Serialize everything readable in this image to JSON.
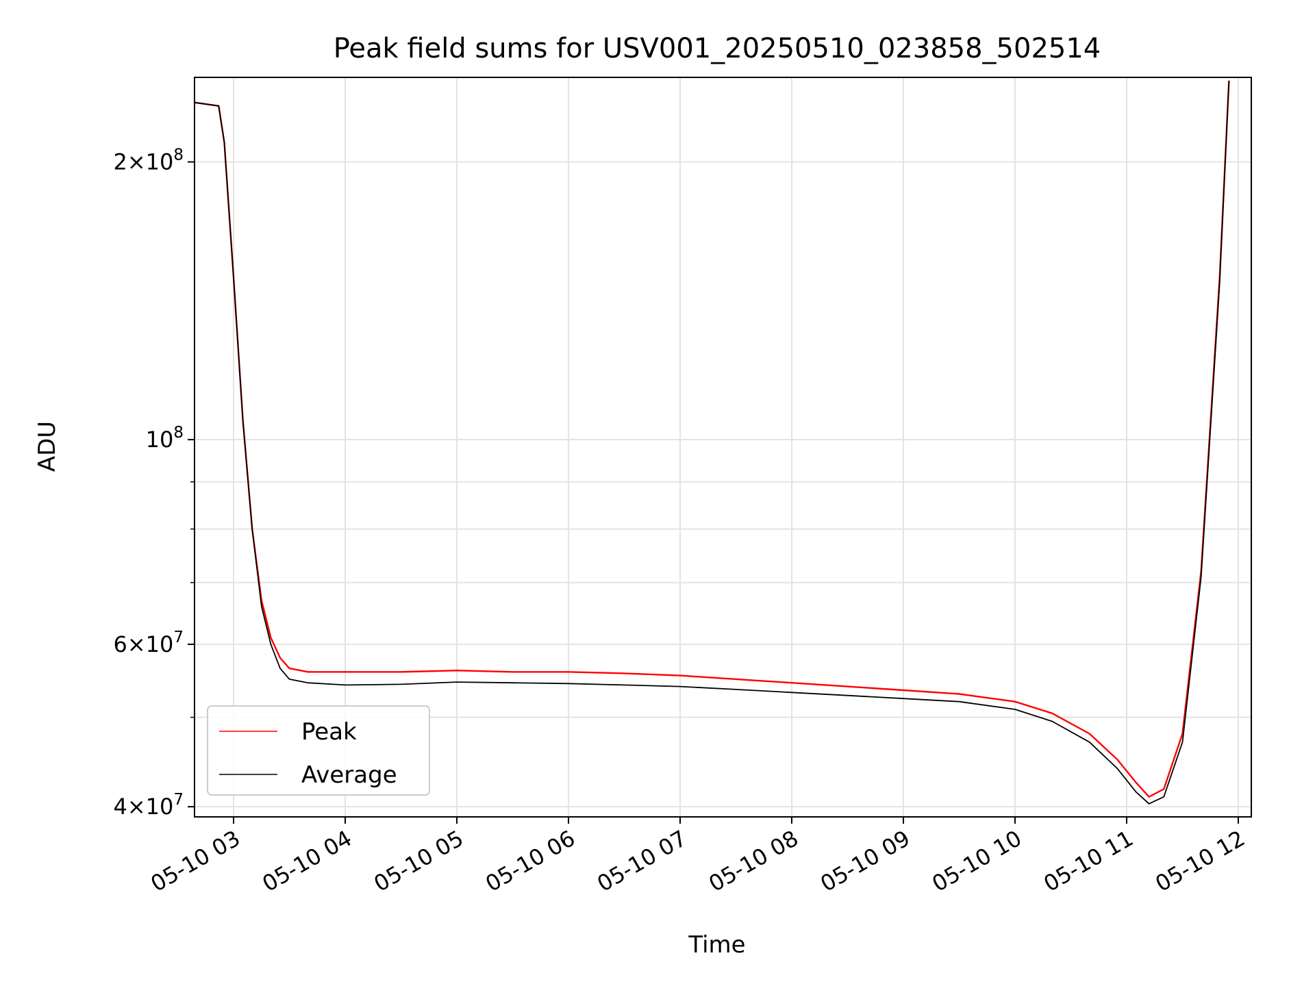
{
  "chart_data": {
    "type": "line",
    "title": "Peak field sums for USV001_20250510_023858_502514",
    "xlabel": "Time",
    "ylabel": "ADU",
    "yscale": "log",
    "ylim": [
      39000000,
      247000000
    ],
    "xlim": [
      "2025-05-10 02:39",
      "2025-05-10 12:07"
    ],
    "grid": true,
    "legend_position": "lower-left",
    "x_ticks": [
      "2025-05-10 03:00",
      "2025-05-10 04:00",
      "2025-05-10 05:00",
      "2025-05-10 06:00",
      "2025-05-10 07:00",
      "2025-05-10 08:00",
      "2025-05-10 09:00",
      "2025-05-10 10:00",
      "2025-05-10 11:00",
      "2025-05-10 12:00"
    ],
    "x_tick_labels": [
      "05-10 03",
      "05-10 04",
      "05-10 05",
      "05-10 06",
      "05-10 07",
      "05-10 08",
      "05-10 09",
      "05-10 10",
      "05-10 11",
      "05-10 12"
    ],
    "y_ticks": [
      {
        "value": 40000000,
        "mantissa": "4",
        "exponent": "7"
      },
      {
        "value": 60000000,
        "mantissa": "6",
        "exponent": "7"
      },
      {
        "value": 100000000,
        "mantissa": "",
        "exponent": "8"
      },
      {
        "value": 200000000,
        "mantissa": "2",
        "exponent": "8"
      }
    ],
    "y_minor_ticks": [
      50000000,
      70000000,
      80000000,
      90000000
    ],
    "series": [
      {
        "name": "Peak",
        "color": "#ff0000",
        "x": [
          "2025-05-10 02:39",
          "2025-05-10 02:52",
          "2025-05-10 02:55",
          "2025-05-10 03:00",
          "2025-05-10 03:05",
          "2025-05-10 03:10",
          "2025-05-10 03:15",
          "2025-05-10 03:20",
          "2025-05-10 03:25",
          "2025-05-10 03:30",
          "2025-05-10 03:40",
          "2025-05-10 04:00",
          "2025-05-10 04:30",
          "2025-05-10 05:00",
          "2025-05-10 05:30",
          "2025-05-10 06:00",
          "2025-05-10 06:30",
          "2025-05-10 07:00",
          "2025-05-10 07:30",
          "2025-05-10 08:00",
          "2025-05-10 08:30",
          "2025-05-10 09:00",
          "2025-05-10 09:30",
          "2025-05-10 10:00",
          "2025-05-10 10:20",
          "2025-05-10 10:40",
          "2025-05-10 10:55",
          "2025-05-10 11:05",
          "2025-05-10 11:12",
          "2025-05-10 11:20",
          "2025-05-10 11:30",
          "2025-05-10 11:40",
          "2025-05-10 11:50",
          "2025-05-10 11:55"
        ],
        "y": [
          232000000,
          230000000,
          210000000,
          150000000,
          105000000,
          80000000,
          67000000,
          61000000,
          58000000,
          56500000,
          56000000,
          56000000,
          56000000,
          56200000,
          56000000,
          56000000,
          55800000,
          55500000,
          55000000,
          54500000,
          54000000,
          53500000,
          53000000,
          52000000,
          50500000,
          48000000,
          45000000,
          42500000,
          41000000,
          41800000,
          48000000,
          72000000,
          150000000,
          245000000
        ]
      },
      {
        "name": "Average",
        "color": "#000000",
        "x": [
          "2025-05-10 02:39",
          "2025-05-10 02:52",
          "2025-05-10 02:55",
          "2025-05-10 03:00",
          "2025-05-10 03:05",
          "2025-05-10 03:10",
          "2025-05-10 03:15",
          "2025-05-10 03:20",
          "2025-05-10 03:25",
          "2025-05-10 03:30",
          "2025-05-10 03:40",
          "2025-05-10 04:00",
          "2025-05-10 04:30",
          "2025-05-10 05:00",
          "2025-05-10 05:30",
          "2025-05-10 06:00",
          "2025-05-10 06:30",
          "2025-05-10 07:00",
          "2025-05-10 07:30",
          "2025-05-10 08:00",
          "2025-05-10 08:30",
          "2025-05-10 09:00",
          "2025-05-10 09:30",
          "2025-05-10 10:00",
          "2025-05-10 10:20",
          "2025-05-10 10:40",
          "2025-05-10 10:55",
          "2025-05-10 11:05",
          "2025-05-10 11:12",
          "2025-05-10 11:20",
          "2025-05-10 11:30",
          "2025-05-10 11:40",
          "2025-05-10 11:50",
          "2025-05-10 11:55"
        ],
        "y": [
          232000000,
          230000000,
          210000000,
          150000000,
          105000000,
          80000000,
          66000000,
          60000000,
          56500000,
          55000000,
          54500000,
          54200000,
          54300000,
          54600000,
          54500000,
          54400000,
          54200000,
          54000000,
          53600000,
          53200000,
          52800000,
          52400000,
          52000000,
          51000000,
          49500000,
          47000000,
          44000000,
          41500000,
          40300000,
          41000000,
          47000000,
          71000000,
          148000000,
          245000000
        ]
      }
    ]
  }
}
